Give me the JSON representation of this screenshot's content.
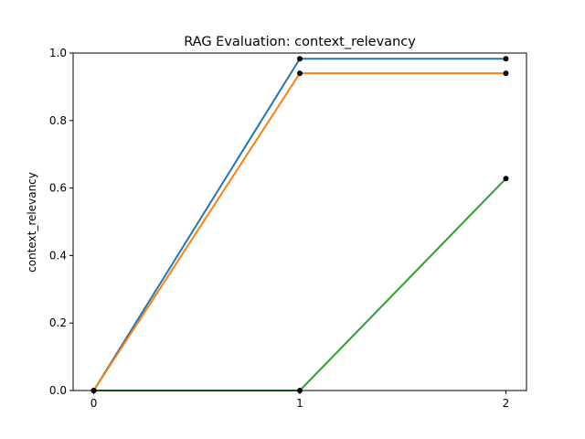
{
  "chart_data": {
    "type": "line",
    "title": "RAG Evaluation: context_relevancy",
    "xlabel": "",
    "ylabel": "context_relevancy",
    "x": [
      0,
      1,
      2
    ],
    "x_ticks": [
      "0",
      "1",
      "2"
    ],
    "y_ticks": [
      "0.0",
      "0.2",
      "0.4",
      "0.6",
      "0.8",
      "1.0"
    ],
    "xlim": [
      -0.1,
      2.1
    ],
    "ylim": [
      0,
      1
    ],
    "grid": false,
    "legend": "none",
    "marker_color": "#000000",
    "series": [
      {
        "color": "#1f77b4",
        "values": [
          0.0,
          0.983,
          0.983
        ]
      },
      {
        "color": "#ff7f0e",
        "values": [
          0.0,
          0.94,
          0.94
        ]
      },
      {
        "color": "#2ca02c",
        "values": [
          0.0,
          0.0,
          0.628
        ]
      }
    ]
  }
}
